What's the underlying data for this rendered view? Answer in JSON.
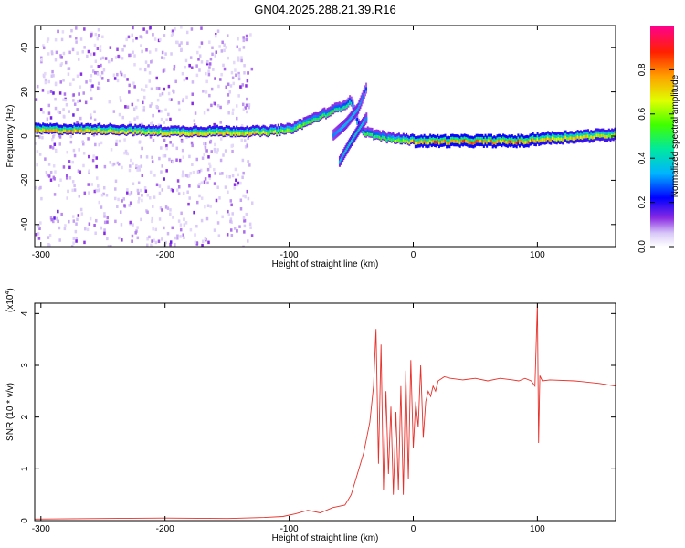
{
  "title": "GN04.2025.288.21.39.R16",
  "colorbar": {
    "label": "Normalized spectral amplitude",
    "ticks": [
      "0.0",
      "0.2",
      "0.4",
      "0.6",
      "0.8"
    ],
    "tick_values": [
      0.0,
      0.2,
      0.4,
      0.6,
      0.8
    ],
    "range": [
      0,
      1
    ],
    "colors": [
      "#ffffff",
      "#c8b4f0",
      "#8a2be2",
      "#0000ff",
      "#00c8ff",
      "#00ff80",
      "#c8ff00",
      "#ffa000",
      "#ff2000",
      "#ff0090"
    ]
  },
  "chart_data": [
    {
      "type": "heatmap",
      "xlabel": "Height of straight line (km)",
      "ylabel": "Frequency (Hz)",
      "xlim": [
        -305,
        163
      ],
      "ylim": [
        -50,
        50
      ],
      "xticks": [
        -300,
        -200,
        -100,
        0,
        100
      ],
      "xtick_labels": [
        "-300",
        "-200",
        "-100",
        "0",
        "100"
      ],
      "yticks": [
        -40,
        -20,
        0,
        20,
        40
      ],
      "ytick_labels": [
        "-40",
        "-20",
        "0",
        "20",
        "40"
      ],
      "ridge": {
        "x": [
          -305,
          -250,
          -200,
          -150,
          -120,
          -100,
          -80,
          -60,
          -50,
          -45,
          -40,
          -35,
          -20,
          0,
          20,
          50,
          90,
          100,
          130,
          163
        ],
        "y": [
          2,
          2,
          1,
          1,
          1,
          2,
          7,
          12,
          15,
          4,
          1,
          0,
          -2,
          -3,
          -3,
          -3,
          -3,
          -2,
          -1,
          0
        ],
        "amplitude": [
          0.8,
          0.75,
          0.7,
          0.75,
          0.7,
          0.6,
          0.55,
          0.5,
          0.45,
          0.4,
          0.5,
          0.5,
          0.55,
          0.8,
          0.85,
          0.85,
          0.85,
          0.8,
          0.75,
          0.7
        ]
      },
      "secondary_branches": [
        {
          "x": [
            -65,
            -55,
            -45,
            -38
          ],
          "y": [
            0,
            5,
            12,
            22
          ],
          "amplitude": [
            0.3,
            0.35,
            0.35,
            0.25
          ]
        },
        {
          "x": [
            -60,
            -52,
            -44,
            -38
          ],
          "y": [
            -12,
            -4,
            3,
            8
          ],
          "amplitude": [
            0.35,
            0.4,
            0.4,
            0.3
          ]
        }
      ],
      "grid": false
    },
    {
      "type": "line",
      "xlabel": "Height of straight line (km)",
      "ylabel": "SNR (10 * v/v)",
      "yscale_label": "(x10",
      "yscale_exp": "4",
      "yscale_close": ")",
      "xlim": [
        -305,
        163
      ],
      "ylim": [
        0,
        4.2
      ],
      "xticks": [
        -300,
        -200,
        -100,
        0,
        100
      ],
      "xtick_labels": [
        "-300",
        "-200",
        "-100",
        "0",
        "100"
      ],
      "yticks": [
        0,
        1,
        2,
        3,
        4
      ],
      "ytick_labels": [
        "0",
        "1",
        "2",
        "3",
        "4"
      ],
      "color": "#e8302a",
      "series": [
        {
          "x": [
            -305,
            -250,
            -200,
            -150,
            -120,
            -105,
            -95,
            -85,
            -75,
            -65,
            -55,
            -50,
            -45,
            -40,
            -35,
            -32,
            -30,
            -28,
            -26,
            -24,
            -22,
            -20,
            -18,
            -16,
            -14,
            -12,
            -10,
            -8,
            -6,
            -4,
            -2,
            0,
            2,
            4,
            6,
            8,
            10,
            12,
            14,
            16,
            18,
            20,
            25,
            30,
            40,
            50,
            60,
            70,
            80,
            85,
            90,
            95,
            98,
            100,
            101,
            102,
            104,
            110,
            130,
            150,
            163
          ],
          "y": [
            0.03,
            0.04,
            0.05,
            0.04,
            0.06,
            0.08,
            0.13,
            0.2,
            0.15,
            0.25,
            0.3,
            0.5,
            0.9,
            1.3,
            1.9,
            2.6,
            3.7,
            1.1,
            3.4,
            0.6,
            2.5,
            0.9,
            2.2,
            0.5,
            2.1,
            0.6,
            2.6,
            0.5,
            2.9,
            0.8,
            3.1,
            1.4,
            2.3,
            1.8,
            3.0,
            1.6,
            2.3,
            2.5,
            2.4,
            2.6,
            2.5,
            2.7,
            2.78,
            2.75,
            2.72,
            2.75,
            2.7,
            2.75,
            2.72,
            2.7,
            2.75,
            2.7,
            2.6,
            4.2,
            1.5,
            2.8,
            2.7,
            2.72,
            2.7,
            2.65,
            2.6
          ]
        }
      ],
      "grid": false
    }
  ]
}
